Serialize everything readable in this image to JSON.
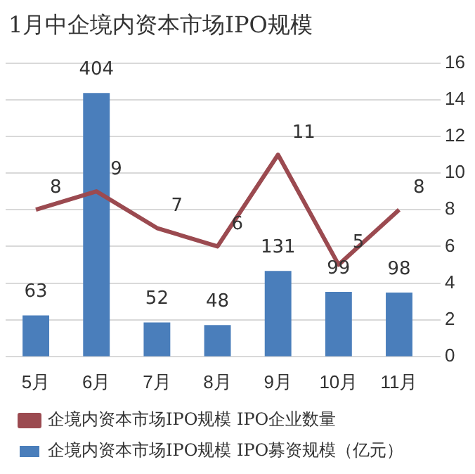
{
  "chart_data": {
    "type": "bar",
    "title": "1月中企境内资本市场IPO规模",
    "categories": [
      "5月",
      "6月",
      "7月",
      "8月",
      "9月",
      "10月",
      "11月"
    ],
    "series": [
      {
        "name": "企境内资本市场IPO规模 IPO募资规模（亿元）",
        "color": "#4a7ebb",
        "values": [
          63,
          404,
          52,
          48,
          131,
          99,
          98
        ]
      },
      {
        "name": "企境内资本市场IPO规模 IPO企业数量",
        "type": "line",
        "axis": "y2",
        "color": "#9b4a50",
        "values": [
          8,
          9,
          7,
          6,
          11,
          5,
          8
        ]
      }
    ],
    "y2lim": [
      0,
      16
    ],
    "y2ticks": [
      0,
      2,
      4,
      6,
      8,
      10,
      12,
      14,
      16
    ],
    "grid": "y2",
    "legend": "bottom",
    "marker": "none",
    "data_labels": true
  }
}
